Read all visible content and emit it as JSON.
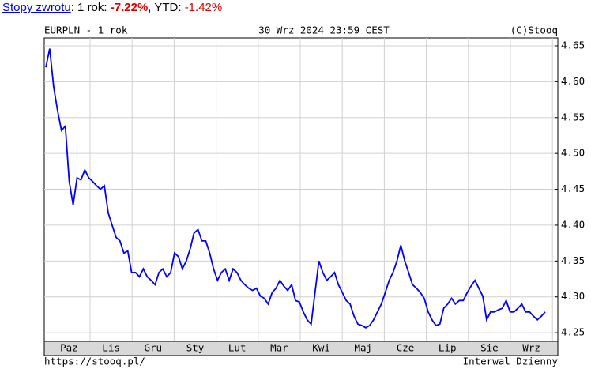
{
  "returns": {
    "link": "Stopy zwrotu",
    "label_1y": ": 1 rok: ",
    "value_1y": "-7.22%",
    "label_ytd": ", YTD: ",
    "value_ytd": "-1.42%"
  },
  "chart_data": {
    "type": "line",
    "title": "EURPLN - 1 rok",
    "subtitle": "30 Wrz 2024 23:59 CEST",
    "credit": "(C)Stooq",
    "footer_left": "https://stooq.pl/",
    "footer_right": "Interwal Dzienny",
    "months": [
      "Paz",
      "Lis",
      "Gru",
      "Sty",
      "Lut",
      "Mar",
      "Kwi",
      "Maj",
      "Cze",
      "Lip",
      "Sie",
      "Wrz"
    ],
    "color": "#0000ff",
    "values": [
      4.62,
      4.646,
      4.593,
      4.56,
      4.532,
      4.538,
      4.461,
      4.428,
      4.466,
      4.463,
      4.477,
      4.466,
      4.461,
      4.455,
      4.45,
      4.455,
      4.417,
      4.4,
      4.383,
      4.378,
      4.361,
      4.364,
      4.334,
      4.334,
      4.328,
      4.339,
      4.328,
      4.323,
      4.317,
      4.334,
      4.339,
      4.328,
      4.334,
      4.361,
      4.356,
      4.339,
      4.35,
      4.367,
      4.389,
      4.394,
      4.378,
      4.378,
      4.361,
      4.339,
      4.323,
      4.334,
      4.339,
      4.323,
      4.339,
      4.334,
      4.323,
      4.317,
      4.312,
      4.309,
      4.312,
      4.301,
      4.298,
      4.29,
      4.306,
      4.312,
      4.323,
      4.315,
      4.309,
      4.317,
      4.295,
      4.293,
      4.279,
      4.268,
      4.262,
      4.306,
      4.35,
      4.334,
      4.323,
      4.328,
      4.334,
      4.317,
      4.306,
      4.295,
      4.29,
      4.273,
      4.262,
      4.26,
      4.257,
      4.26,
      4.268,
      4.279,
      4.29,
      4.306,
      4.323,
      4.334,
      4.35,
      4.372,
      4.35,
      4.334,
      4.317,
      4.312,
      4.306,
      4.298,
      4.279,
      4.268,
      4.26,
      4.262,
      4.284,
      4.29,
      4.298,
      4.29,
      4.295,
      4.295,
      4.306,
      4.315,
      4.323,
      4.312,
      4.301,
      4.268,
      4.279,
      4.279,
      4.282,
      4.284,
      4.295,
      4.279,
      4.279,
      4.284,
      4.29,
      4.279,
      4.279,
      4.273,
      4.268,
      4.273,
      4.279
    ],
    "ylim": [
      4.238,
      4.661
    ],
    "yticks": [
      4.25,
      {
        "value": 4.3,
        "label": "4.30"
      },
      4.35,
      {
        "value": 4.4,
        "label": "4.40"
      },
      4.45,
      {
        "value": 4.5,
        "label": "4.50"
      },
      4.55,
      {
        "value": 4.6,
        "label": "4.60"
      },
      4.65
    ],
    "grid": true
  }
}
